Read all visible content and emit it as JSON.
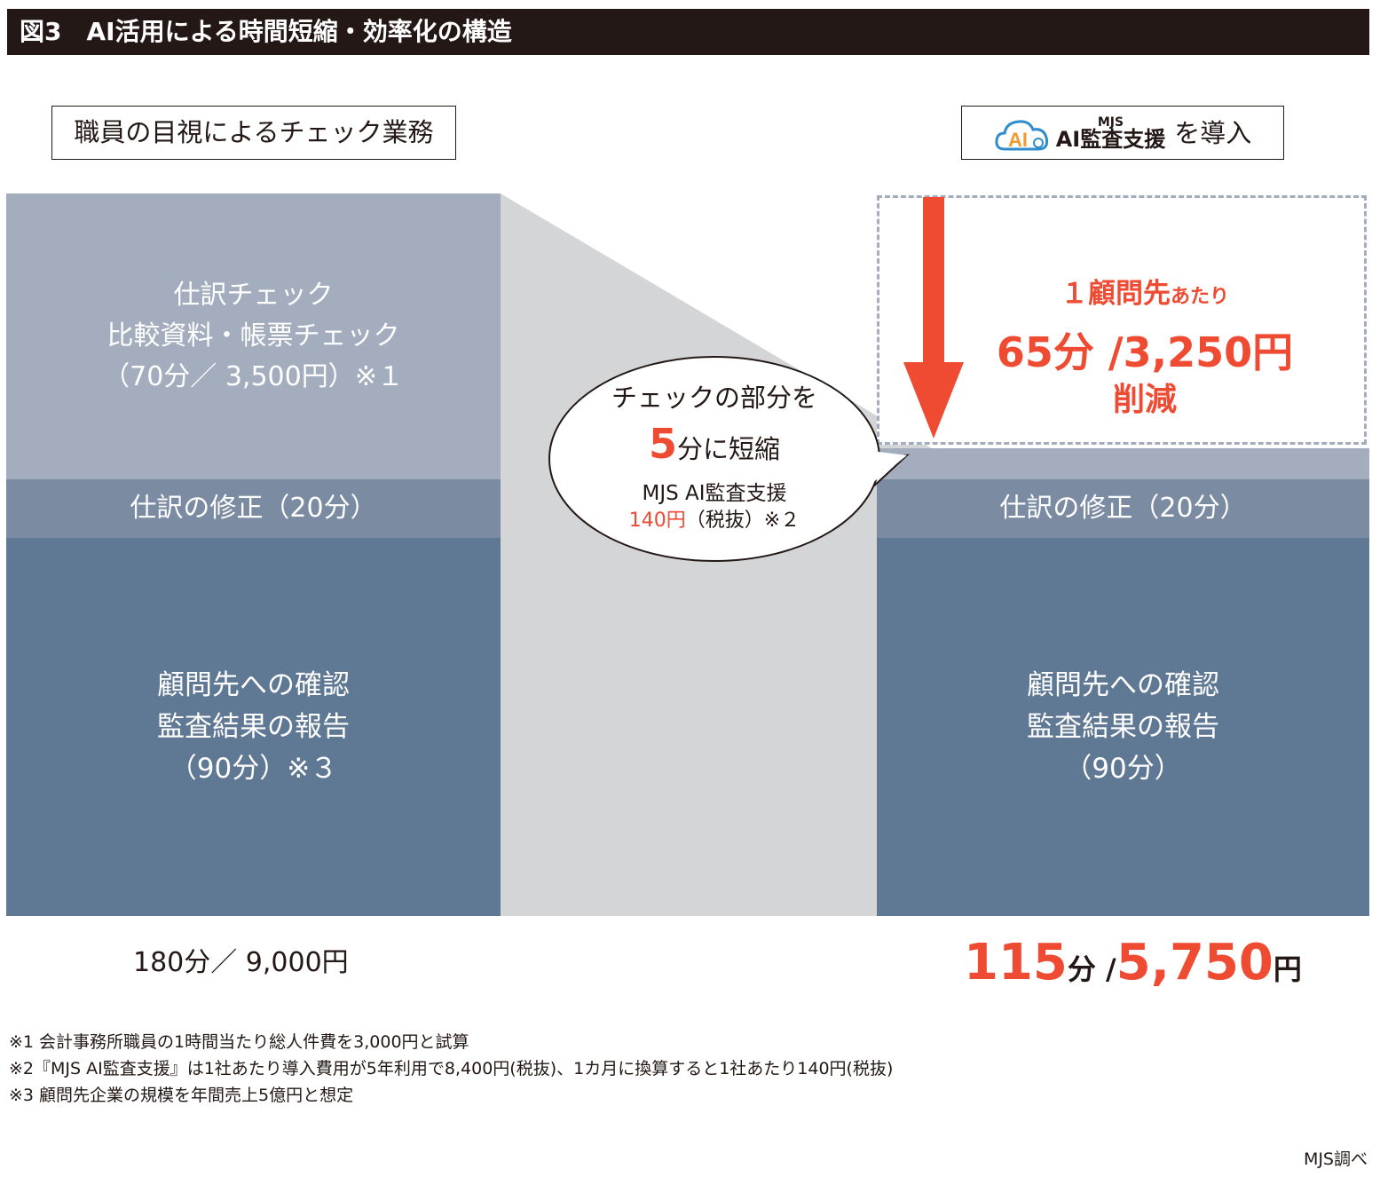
{
  "header": {
    "title": "図3　AI活用による時間短縮・効率化の構造"
  },
  "left_label": "職員の目視によるチェック業務",
  "right_label": {
    "logo_ai": "AI",
    "logo_small": "MJS",
    "logo_product": "AI監査支援",
    "suffix": "を導入"
  },
  "left_column": {
    "check_block": {
      "line1": "仕訳チェック",
      "line2": "比較資料・帳票チェック",
      "line3": "（70分／ 3,500円）※１"
    },
    "correction_block": "仕訳の修正（20分）",
    "confirm_block": {
      "line1": "顧問先への確認",
      "line2": "監査結果の報告",
      "line3": "（90分）※３"
    },
    "total": "180分／ 9,000円"
  },
  "bubble": {
    "line1": "チェックの部分を",
    "big_number": "5",
    "line2_rest": "分に短縮",
    "line3": "MJS AI監査支援",
    "price": "140円",
    "price_rest": "（税抜）※２"
  },
  "right_column": {
    "savings": {
      "line1_main": "１顧問先",
      "line1_small": "あたり",
      "line2": "65分 /3,250円",
      "line3": "削減"
    },
    "correction_block": "仕訳の修正（20分）",
    "confirm_block": {
      "line1": "顧問先への確認",
      "line2": "監査結果の報告",
      "line3": "（90分）"
    },
    "total": {
      "minutes": "115",
      "minutes_unit": "分 /",
      "yen": "5,750",
      "yen_unit": "円"
    }
  },
  "footnotes": [
    "※1 会計事務所職員の1時間当たり総人件費を3,000円と試算",
    "※2『MJS AI監査支援』は1社あたり導入費用が5年利用で8,400円(税抜)、1カ月に換算すると1社あたり140円(税抜)",
    "※3 顧問先企業の規模を年間売上5億円と想定"
  ],
  "source": "MJS調べ",
  "colors": {
    "accent_red": "#ef4a32",
    "light_block": "#a3adbd",
    "mid_block": "#7a8ba2",
    "dark_block": "#5f7894",
    "connector_gray": "#d4d5d7",
    "logo_blue": "#2f8ccd",
    "logo_orange": "#f29a2e"
  }
}
